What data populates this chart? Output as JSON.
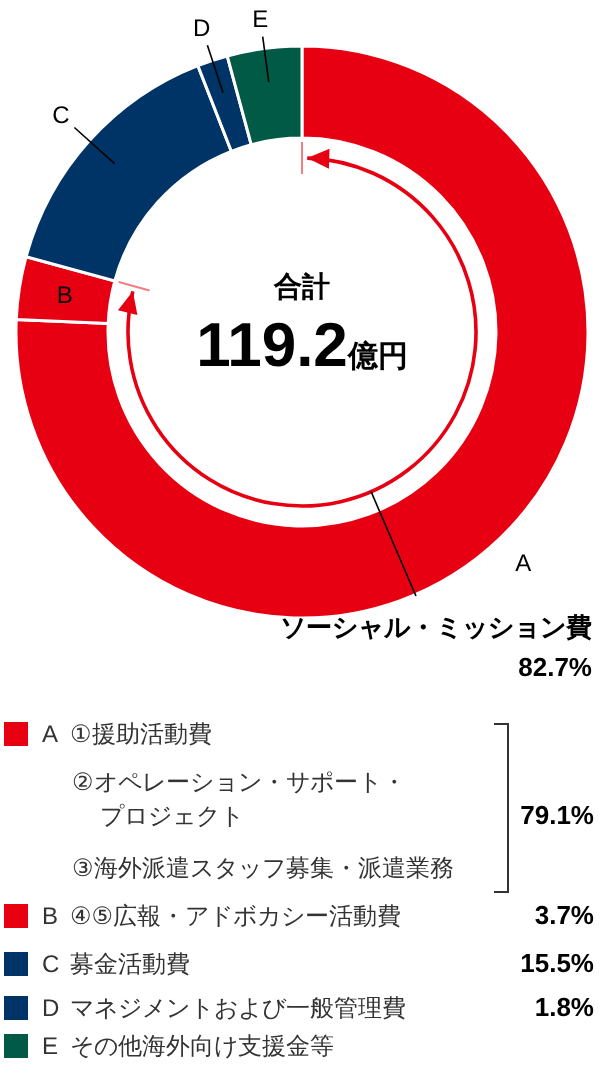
{
  "chart_data": {
    "type": "donut",
    "categories": [
      "A",
      "B",
      "C",
      "D",
      "E"
    ],
    "values": [
      79.1,
      3.7,
      15.5,
      1.8,
      4.4
    ],
    "colors": [
      "#e60012",
      "#e60012",
      "#003366",
      "#003366",
      "#005a46"
    ],
    "value_labels": [
      "79.1%",
      "3.7%",
      "15.5%",
      "1.8%",
      null
    ],
    "annotations": [
      "合計",
      "119.2億円",
      "ソーシャル・ミッション費",
      "82.7%",
      "①援助活動費",
      "②オペレーション・サポート・プロジェクト",
      "③海外派遣スタッフ募集・派遣業務",
      "④⑤広報・アドボカシー活動費",
      "募金活動費",
      "マネジメントおよび一般管理費",
      "その他海外向け支援金等"
    ],
    "legend": "bottom"
  }
}
